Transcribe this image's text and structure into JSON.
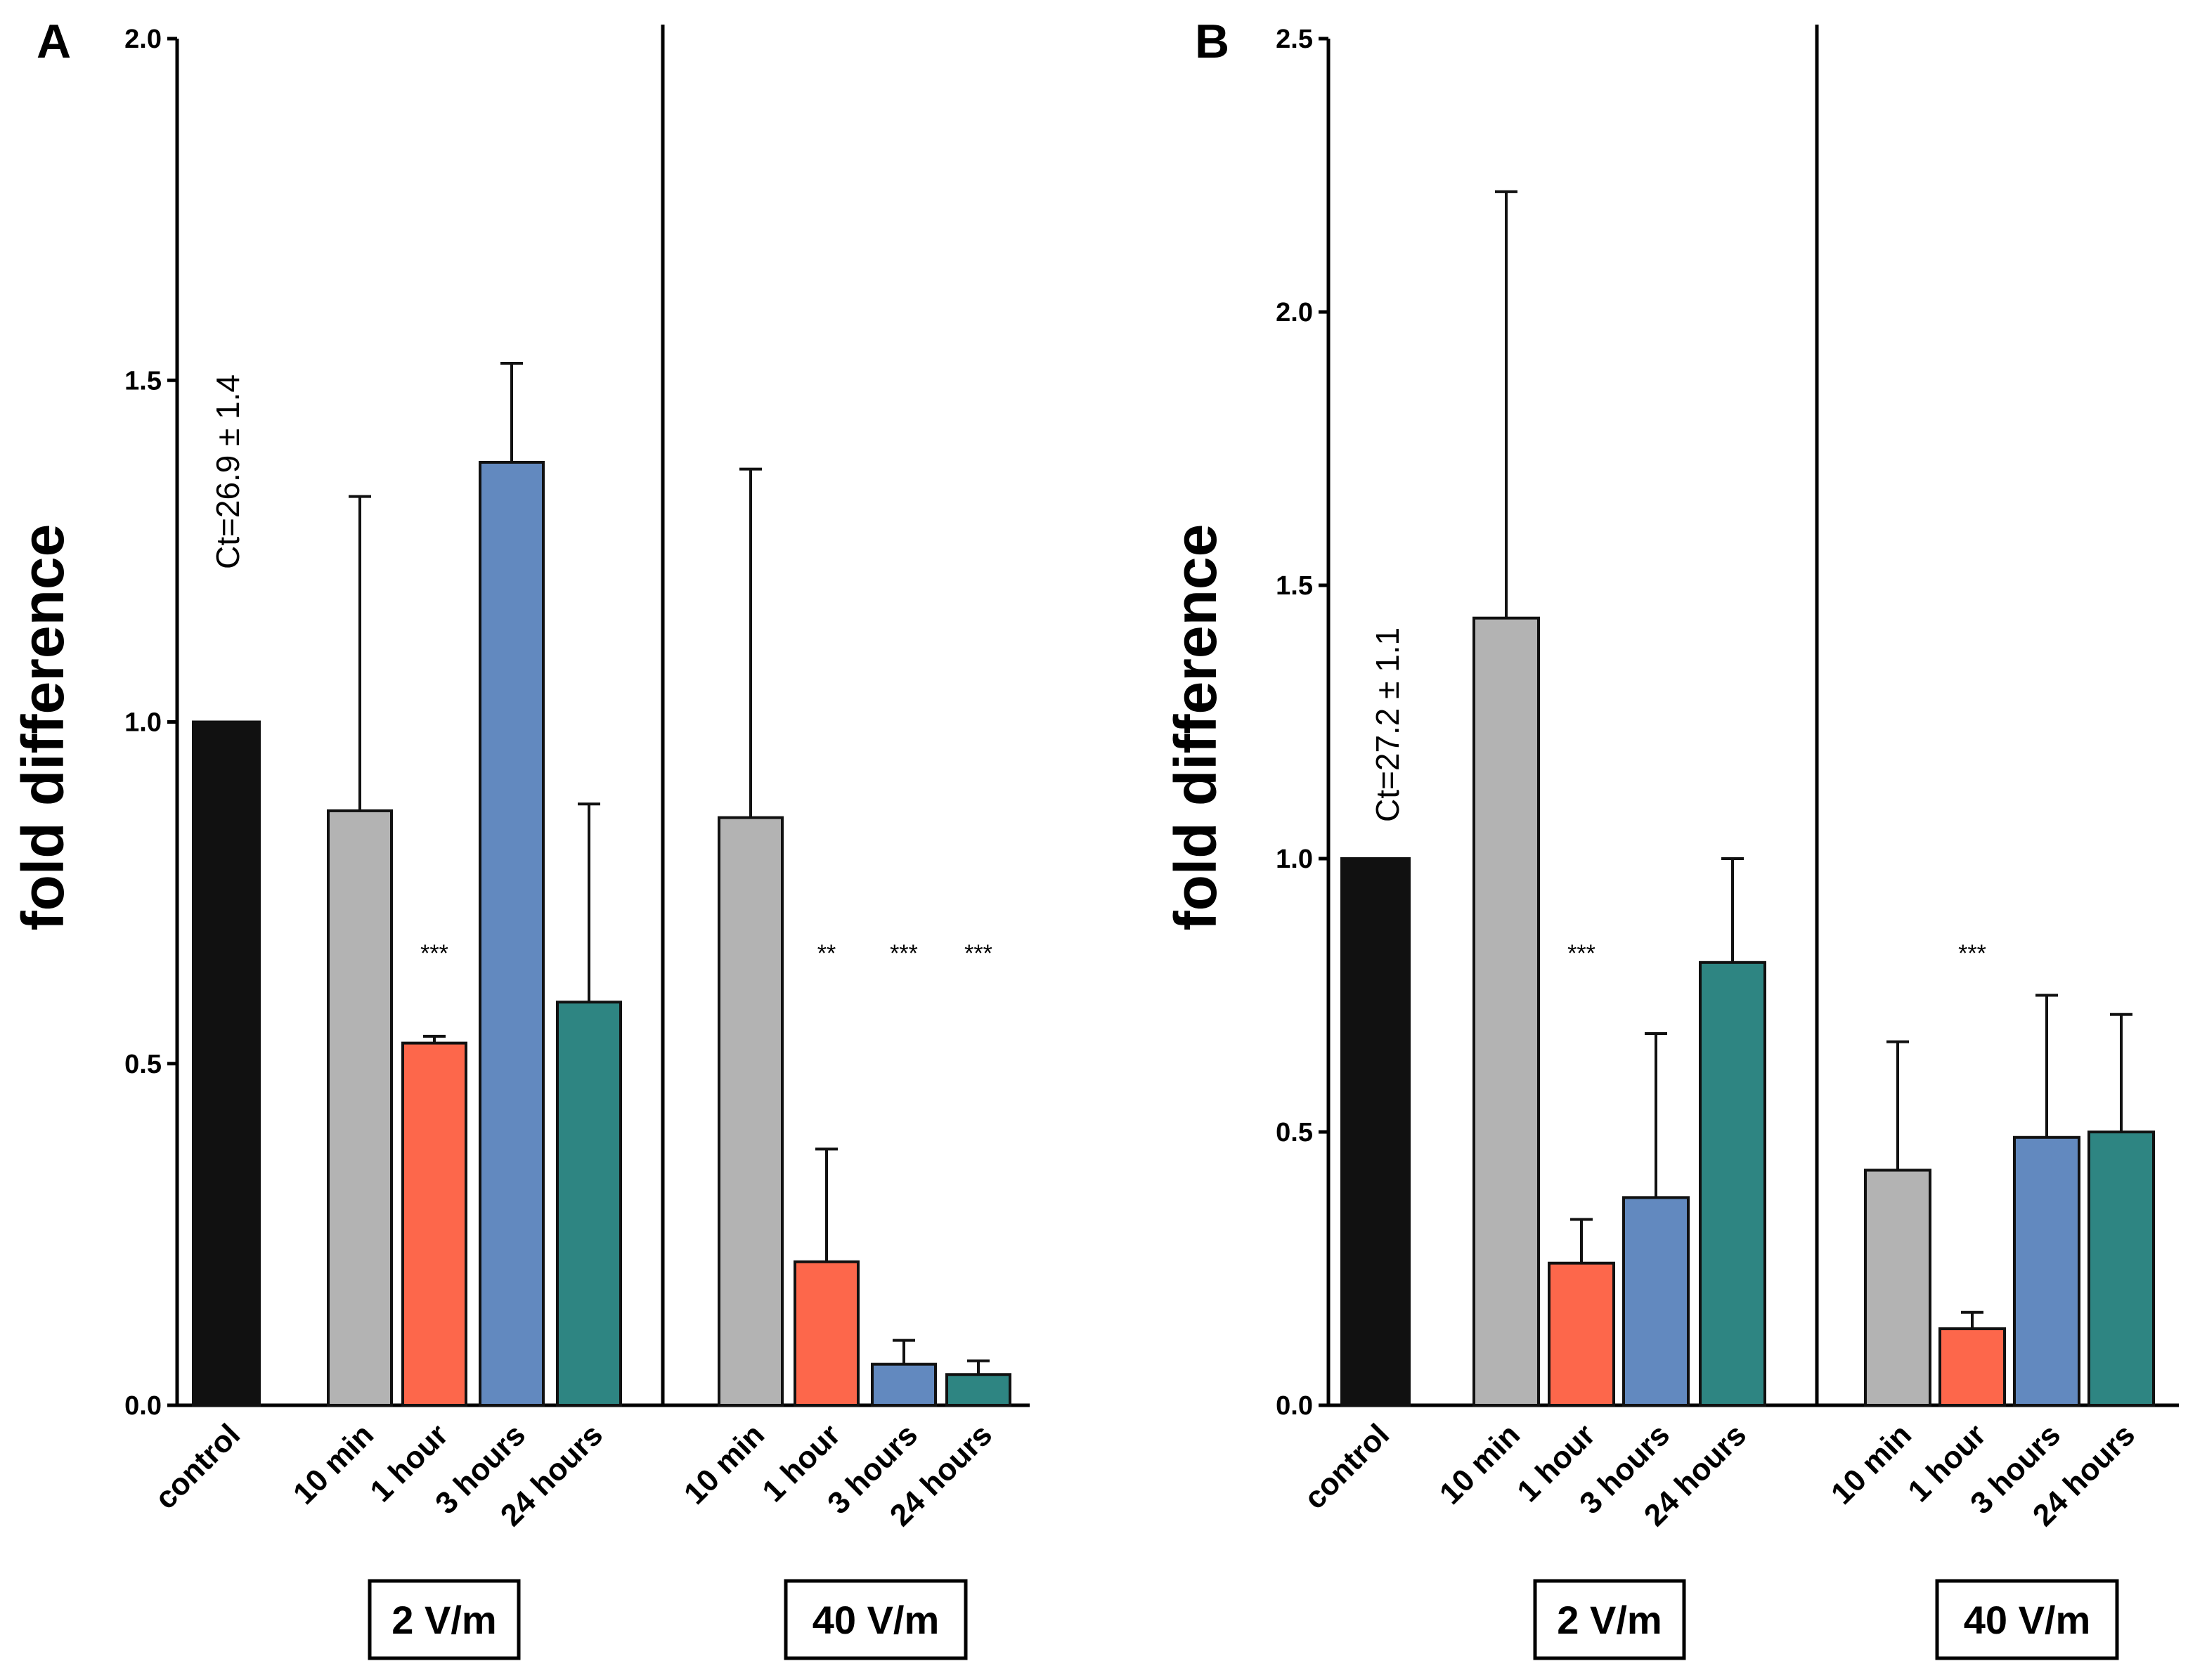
{
  "chart_data": [
    {
      "type": "bar",
      "panel": "A",
      "ylabel": "fold difference",
      "ylim": [
        0,
        2.0
      ],
      "yticks": [
        "0.0",
        "0.5",
        "1.0",
        "1.5",
        "2.0"
      ],
      "annotation": "Ct=26.9 ± 1.4",
      "bars": [
        {
          "label": "control",
          "value": 1.0,
          "error": 0,
          "color": "#111111",
          "sig": ""
        },
        {
          "label": "10 min",
          "value": 0.87,
          "error": 0.46,
          "color": "#b3b3b3",
          "sig": ""
        },
        {
          "label": "1 hour",
          "value": 0.53,
          "error": 0.01,
          "color": "#fd674b",
          "sig": "***"
        },
        {
          "label": "3 hours",
          "value": 1.38,
          "error": 0.145,
          "color": "#6289bf",
          "sig": ""
        },
        {
          "label": "24 hours",
          "value": 0.59,
          "error": 0.29,
          "color": "#2e8582",
          "sig": ""
        },
        {
          "label": "10 min",
          "value": 0.86,
          "error": 0.51,
          "color": "#b3b3b3",
          "sig": ""
        },
        {
          "label": "1 hour",
          "value": 0.21,
          "error": 0.165,
          "color": "#fd674b",
          "sig": "**"
        },
        {
          "label": "3 hours",
          "value": 0.06,
          "error": 0.035,
          "color": "#6289bf",
          "sig": "***"
        },
        {
          "label": "24 hours",
          "value": 0.045,
          "error": 0.02,
          "color": "#2e8582",
          "sig": "***"
        }
      ],
      "groups": [
        "2 V/m",
        "40 V/m"
      ]
    },
    {
      "type": "bar",
      "panel": "B",
      "ylabel": "fold difference",
      "ylim": [
        0,
        2.5
      ],
      "yticks": [
        "0.0",
        "0.5",
        "1.0",
        "1.5",
        "2.0",
        "2.5"
      ],
      "annotation": "Ct=27.2 ± 1.1",
      "bars": [
        {
          "label": "control",
          "value": 1.0,
          "error": 0,
          "color": "#111111",
          "sig": ""
        },
        {
          "label": "10 min",
          "value": 1.44,
          "error": 0.78,
          "color": "#b3b3b3",
          "sig": ""
        },
        {
          "label": "1 hour",
          "value": 0.26,
          "error": 0.08,
          "color": "#fd674b",
          "sig": "***"
        },
        {
          "label": "3 hours",
          "value": 0.38,
          "error": 0.3,
          "color": "#6289bf",
          "sig": ""
        },
        {
          "label": "24 hours",
          "value": 0.81,
          "error": 0.19,
          "color": "#2e8582",
          "sig": ""
        },
        {
          "label": "10 min",
          "value": 0.43,
          "error": 0.235,
          "color": "#b3b3b3",
          "sig": ""
        },
        {
          "label": "1 hour",
          "value": 0.14,
          "error": 0.03,
          "color": "#fd674b",
          "sig": "***"
        },
        {
          "label": "3 hours",
          "value": 0.49,
          "error": 0.26,
          "color": "#6289bf",
          "sig": ""
        },
        {
          "label": "24 hours",
          "value": 0.5,
          "error": 0.215,
          "color": "#2e8582",
          "sig": ""
        }
      ],
      "groups": [
        "2 V/m",
        "40 V/m"
      ]
    }
  ]
}
